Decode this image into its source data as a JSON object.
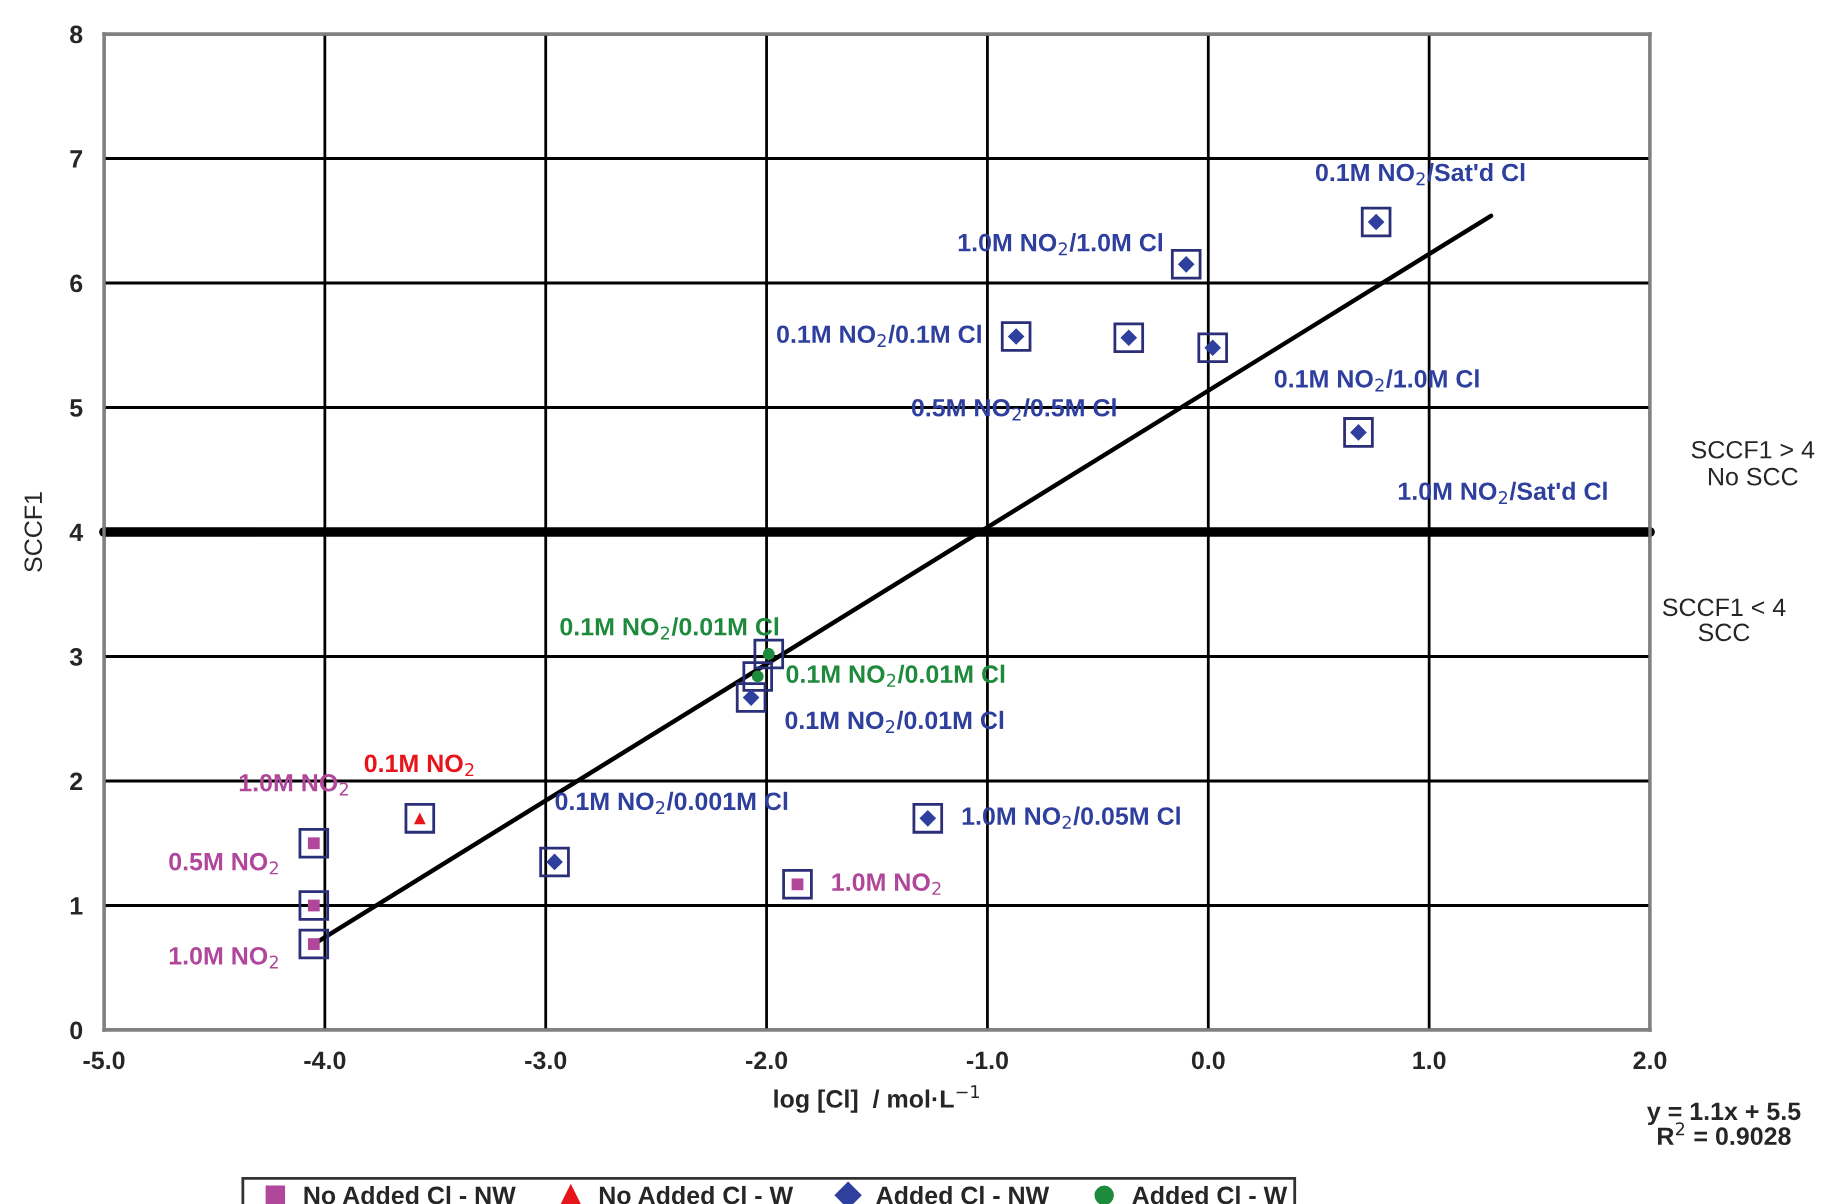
{
  "chart_data": {
    "type": "scatter",
    "xlabel": "log [Cl]  / mol·L$^{−1}$",
    "ylabel": "SCCF1",
    "xlim": [
      -5,
      2
    ],
    "xticks": [
      {
        "value": -5,
        "label": "-5.0"
      },
      {
        "value": -4,
        "label": "-4.0"
      },
      {
        "value": -3,
        "label": "-3.0"
      },
      {
        "value": -2,
        "label": "-2.0"
      },
      {
        "value": -1,
        "label": "-1.0"
      },
      {
        "value": 0,
        "label": "0.0"
      },
      {
        "value": 1,
        "label": "1.0"
      },
      {
        "value": 2,
        "label": "2.0"
      }
    ],
    "ylim": [
      0,
      8
    ],
    "yticks": [
      0,
      1,
      2,
      3,
      4,
      5,
      6,
      7,
      8
    ],
    "grid": true,
    "legend": "bottom",
    "series": [
      {
        "name": "No Added Cl - NW",
        "color": "#b0479a",
        "marker": "square",
        "x": [
          -4.05,
          -4.05,
          -4.05,
          -1.86
        ],
        "values": [
          1.5,
          1.0,
          0.69,
          1.17
        ]
      },
      {
        "name": "No Added Cl - W",
        "color": "#e8141b",
        "marker": "triangle",
        "x": [
          -3.57
        ],
        "values": [
          1.7
        ]
      },
      {
        "name": "Added Cl - NW",
        "color": "#2e3f9e",
        "marker": "diamond",
        "x": [
          -2.96,
          -1.27,
          -2.07,
          -0.87,
          -0.1,
          -0.36,
          0.02,
          0.76,
          0.68
        ],
        "values": [
          1.35,
          1.7,
          2.67,
          5.57,
          6.15,
          5.56,
          5.48,
          6.49,
          4.8
        ]
      },
      {
        "name": "Added Cl - W",
        "color": "#1e8a3c",
        "marker": "circle",
        "x": [
          -1.99,
          -2.04
        ],
        "values": [
          3.02,
          2.84
        ]
      },
      {
        "type": "line",
        "color": "#000000",
        "x": [
          -4.05,
          1.28
        ],
        "values": [
          0.69,
          6.54
        ]
      }
    ],
    "ref_lines": [
      {
        "axis": "y",
        "value": 4,
        "label": "SCCF1 > 4\nNo SCC",
        "color": "#000000"
      }
    ],
    "annotations": [
      {
        "text": "1.0M NO$_{2}$",
        "x": -4.05,
        "y": 1.5
      },
      {
        "text": "0.5M NO$_{2}$",
        "x": -4.05,
        "y": 1.0
      },
      {
        "text": "1.0M NO$_{2}$",
        "x": -4.05,
        "y": 0.69
      },
      {
        "text": "1.0M NO$_{2}$",
        "x": -1.86,
        "y": 1.17
      },
      {
        "text": "0.1M NO$_{2}$",
        "x": -3.57,
        "y": 1.7
      },
      {
        "text": "0.1M NO$_{2}$/0.001M Cl",
        "x": -2.96,
        "y": 1.35
      },
      {
        "text": "1.0M NO$_{2}$/0.05M Cl",
        "x": -1.27,
        "y": 1.7
      },
      {
        "text": "0.1M NO$_{2}$/0.01M Cl",
        "x": -2.07,
        "y": 2.67
      },
      {
        "text": "0.1M NO$_{2}$/0.01M Cl",
        "x": -1.99,
        "y": 3.02
      },
      {
        "text": "0.1M NO$_{2}$/0.01M Cl",
        "x": -2.04,
        "y": 2.84
      },
      {
        "text": "0.1M NO$_{2}$/0.1M Cl",
        "x": -0.87,
        "y": 5.57
      },
      {
        "text": "1.0M NO$_{2}$/1.0M Cl",
        "x": -0.1,
        "y": 6.15
      },
      {
        "text": "0.5M NO$_{2}$/0.5M Cl",
        "x": -0.36,
        "y": 5.56
      },
      {
        "text": "0.1M NO$_{2}$/1.0M Cl",
        "x": 0.02,
        "y": 5.48
      },
      {
        "text": "0.1M NO$_{2}$/Sat'd Cl",
        "x": 0.76,
        "y": 6.49
      },
      {
        "text": "1.0M NO$_{2}$/Sat'd Cl",
        "x": 0.68,
        "y": 4.8
      },
      "SCCF1 < 4\nSCC",
      "y = 1.1x + 5.5\nR$^{2}$ = 0.9028"
    ]
  }
}
